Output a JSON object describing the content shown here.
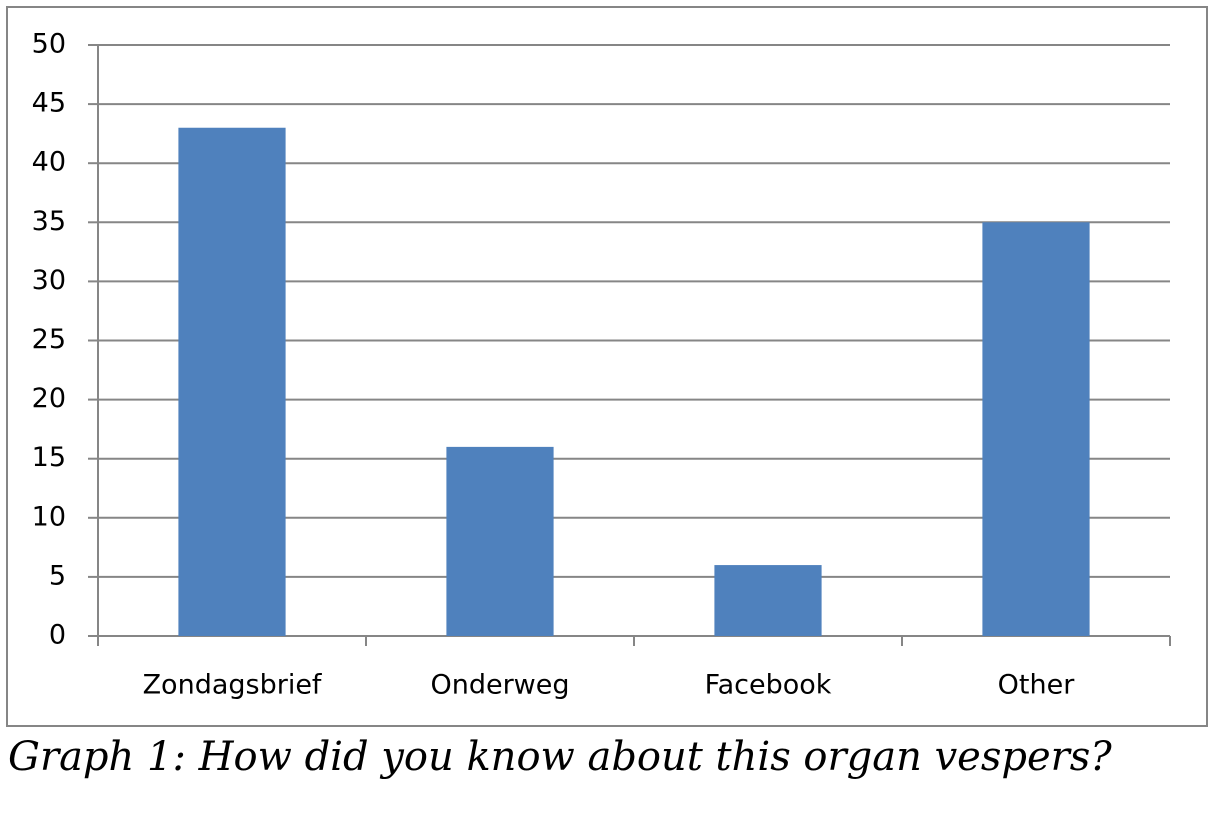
{
  "chart_data": {
    "type": "bar",
    "caption": "Graph 1: How did you know about this organ vespers?",
    "categories": [
      "Zondagsbrief",
      "Onderweg",
      "Facebook",
      "Other"
    ],
    "values": [
      43,
      16,
      6,
      35
    ],
    "color": "#4f81bd",
    "ylim": [
      0,
      50
    ],
    "yticks": [
      0,
      5,
      10,
      15,
      20,
      25,
      30,
      35,
      40,
      45,
      50
    ],
    "grid": true
  }
}
